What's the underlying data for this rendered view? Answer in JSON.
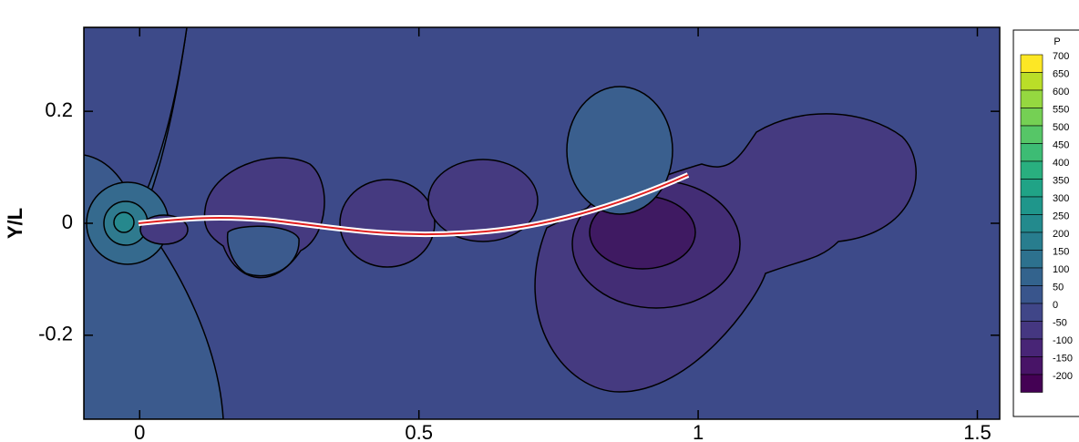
{
  "chart_data": {
    "type": "contour",
    "ylabel": "Y/L",
    "xlim": [
      -0.1,
      1.54
    ],
    "ylim": [
      -0.35,
      0.35
    ],
    "xticks": [
      0,
      0.5,
      1,
      1.5
    ],
    "yticks": [
      0.2,
      0,
      -0.2
    ],
    "colorbar": {
      "title": "P",
      "levels": [
        700,
        650,
        600,
        550,
        500,
        450,
        400,
        350,
        300,
        250,
        200,
        150,
        100,
        50,
        0,
        -50,
        -100,
        -150,
        -200
      ],
      "colors": [
        "#fde725",
        "#bade28",
        "#95d840",
        "#75d054",
        "#56c667",
        "#3dbc74",
        "#29af7f",
        "#20a386",
        "#1f968b",
        "#238a8d",
        "#287d8e",
        "#2d718e",
        "#33638d",
        "#39558c",
        "#404688",
        "#453781",
        "#482576",
        "#481467",
        "#440154"
      ]
    }
  }
}
